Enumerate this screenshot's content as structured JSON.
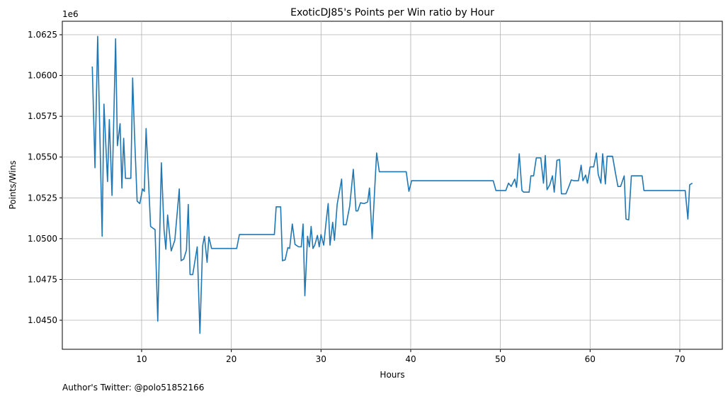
{
  "chart_data": {
    "type": "line",
    "title": "ExoticDJ85's Points per Win ratio by Hour",
    "x_label": "Hours",
    "y_label": "Points/Wins",
    "y_offset_label": "1e6",
    "footnote": "Author's Twitter: @polo51852166",
    "grid": true,
    "xlim": [
      1.16,
      74.74
    ],
    "xticks": [
      10,
      20,
      30,
      40,
      50,
      60,
      70
    ],
    "ylim": [
      1043220,
      1063325
    ],
    "yticks": [
      {
        "value": 1045000,
        "label": "1.0450"
      },
      {
        "value": 1047500,
        "label": "1.0475"
      },
      {
        "value": 1050000,
        "label": "1.0500"
      },
      {
        "value": 1052500,
        "label": "1.0525"
      },
      {
        "value": 1055000,
        "label": "1.0550"
      },
      {
        "value": 1057500,
        "label": "1.0575"
      },
      {
        "value": 1060000,
        "label": "1.0600"
      },
      {
        "value": 1062500,
        "label": "1.0625"
      }
    ],
    "x": [
      4.5,
      4.8,
      5.1,
      5.6,
      5.8,
      6.2,
      6.4,
      6.7,
      7.1,
      7.3,
      7.6,
      7.8,
      8.0,
      8.2,
      8.8,
      9.0,
      9.2,
      9.5,
      9.8,
      10.1,
      10.3,
      10.5,
      11.0,
      11.5,
      11.8,
      12.2,
      12.5,
      12.7,
      12.9,
      13.3,
      13.7,
      14.2,
      14.4,
      14.7,
      15.0,
      15.2,
      15.4,
      15.7,
      16.2,
      16.5,
      16.8,
      17.0,
      17.3,
      17.5,
      17.8,
      20.6,
      20.9,
      24.8,
      25.0,
      25.5,
      25.7,
      26.0,
      26.3,
      26.5,
      26.8,
      27.1,
      27.5,
      27.8,
      28.0,
      28.2,
      28.5,
      28.7,
      28.9,
      29.1,
      29.3,
      29.6,
      29.8,
      30.0,
      30.3,
      30.6,
      30.8,
      31.0,
      31.3,
      31.5,
      31.8,
      32.3,
      32.5,
      32.8,
      33.2,
      33.6,
      33.9,
      34.1,
      34.4,
      34.8,
      35.2,
      35.4,
      35.7,
      36.0,
      36.2,
      36.5,
      39.5,
      39.8,
      40.1,
      49.2,
      49.5,
      50.6,
      50.9,
      51.2,
      51.6,
      51.8,
      52.1,
      52.4,
      52.6,
      53.2,
      53.4,
      53.7,
      54.0,
      54.5,
      54.8,
      55.0,
      55.2,
      55.5,
      55.8,
      56.0,
      56.3,
      56.6,
      56.8,
      57.3,
      57.6,
      57.9,
      58.2,
      58.7,
      59.0,
      59.2,
      59.5,
      59.7,
      60.0,
      60.4,
      60.7,
      60.9,
      61.2,
      61.4,
      61.7,
      61.9,
      62.5,
      62.8,
      63.1,
      63.4,
      63.8,
      64.0,
      64.3,
      64.6,
      65.8,
      66.0,
      70.6,
      70.9,
      71.1,
      71.4
    ],
    "series": [
      {
        "name": "Points/Wins",
        "color": "#1f77b4",
        "values": [
          1060550,
          1054350,
          1062400,
          1050150,
          1058250,
          1053500,
          1057300,
          1052650,
          1062250,
          1055700,
          1057050,
          1053100,
          1056150,
          1053700,
          1053700,
          1059850,
          1056500,
          1052300,
          1052150,
          1053050,
          1052900,
          1056750,
          1050750,
          1050550,
          1044950,
          1054650,
          1050550,
          1049350,
          1051450,
          1049250,
          1049900,
          1053050,
          1048650,
          1048750,
          1049300,
          1052100,
          1047800,
          1047800,
          1049500,
          1044200,
          1049550,
          1050150,
          1048550,
          1050100,
          1049400,
          1049400,
          1050250,
          1050250,
          1051950,
          1051950,
          1048650,
          1048700,
          1049450,
          1049400,
          1050900,
          1049650,
          1049500,
          1049500,
          1050900,
          1046500,
          1050150,
          1049500,
          1050750,
          1049400,
          1049600,
          1050200,
          1049500,
          1050250,
          1049600,
          1051200,
          1052150,
          1049600,
          1051000,
          1049900,
          1052100,
          1053650,
          1050850,
          1050850,
          1052000,
          1054250,
          1051700,
          1051700,
          1052200,
          1052150,
          1052250,
          1053100,
          1050000,
          1053200,
          1055250,
          1054100,
          1054100,
          1052900,
          1053550,
          1053550,
          1052950,
          1052950,
          1053400,
          1053200,
          1053650,
          1053150,
          1055200,
          1052950,
          1052850,
          1052850,
          1053850,
          1053850,
          1054950,
          1054950,
          1053400,
          1055100,
          1053000,
          1053300,
          1053850,
          1052850,
          1054800,
          1054850,
          1052750,
          1052750,
          1053150,
          1053600,
          1053550,
          1053550,
          1054500,
          1053550,
          1053900,
          1053400,
          1054400,
          1054400,
          1055250,
          1053950,
          1053400,
          1055200,
          1053350,
          1055050,
          1055050,
          1054100,
          1053200,
          1053200,
          1053850,
          1051200,
          1051150,
          1053850,
          1053850,
          1052950,
          1052950,
          1051200,
          1053300,
          1053400
        ]
      }
    ]
  }
}
